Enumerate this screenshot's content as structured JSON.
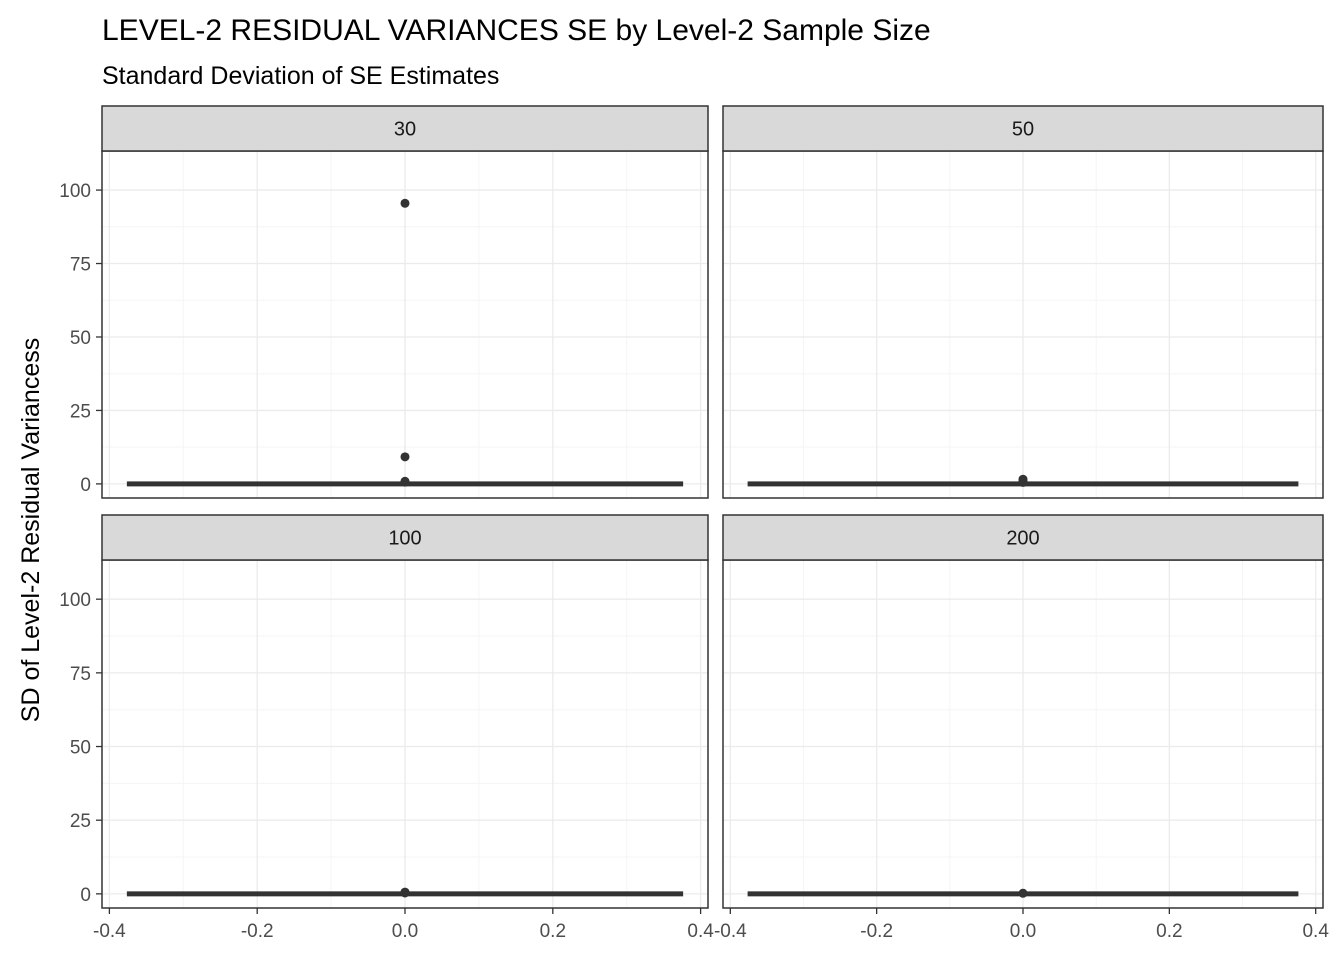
{
  "chart_data": {
    "type": "boxplot",
    "title": "LEVEL-2 RESIDUAL VARIANCES SE by Level-2 Sample Size",
    "subtitle": "Standard Deviation of SE Estimates",
    "xlabel": "",
    "ylabel": "SD of Level-2 Residual Variancess",
    "xlim": [
      -0.4,
      0.4
    ],
    "ylim": [
      0,
      100
    ],
    "x_ticks": [
      "-0.4",
      "-0.2",
      "0.0",
      "0.2",
      "0.4"
    ],
    "y_ticks": [
      "0",
      "25",
      "50",
      "75",
      "100"
    ],
    "grid": true,
    "facets": [
      {
        "label": "30",
        "box": {
          "xmin": -0.375,
          "xmax": 0.375,
          "q1": 0,
          "median": 0,
          "q3": 0,
          "whisker_low": 0,
          "whisker_high": 0
        },
        "outliers": [
          95.5,
          9.2,
          0.9,
          0.6
        ]
      },
      {
        "label": "50",
        "box": {
          "xmin": -0.375,
          "xmax": 0.375,
          "q1": 0,
          "median": 0,
          "q3": 0,
          "whisker_low": 0,
          "whisker_high": 0
        },
        "outliers": [
          1.6,
          1.1,
          0.5
        ]
      },
      {
        "label": "100",
        "box": {
          "xmin": -0.375,
          "xmax": 0.375,
          "q1": 0,
          "median": 0,
          "q3": 0,
          "whisker_low": 0,
          "whisker_high": 0
        },
        "outliers": [
          0.6,
          0.3
        ]
      },
      {
        "label": "200",
        "box": {
          "xmin": -0.375,
          "xmax": 0.375,
          "q1": 0,
          "median": 0,
          "q3": 0,
          "whisker_low": 0,
          "whisker_high": 0
        },
        "outliers": [
          0.2
        ]
      }
    ],
    "colors": {
      "strip_fill": "#d9d9d9",
      "panel_border": "#333333",
      "grid_major": "#ebebeb",
      "grid_minor": "#f5f5f5",
      "box": "#333333",
      "point": "#333333"
    }
  }
}
